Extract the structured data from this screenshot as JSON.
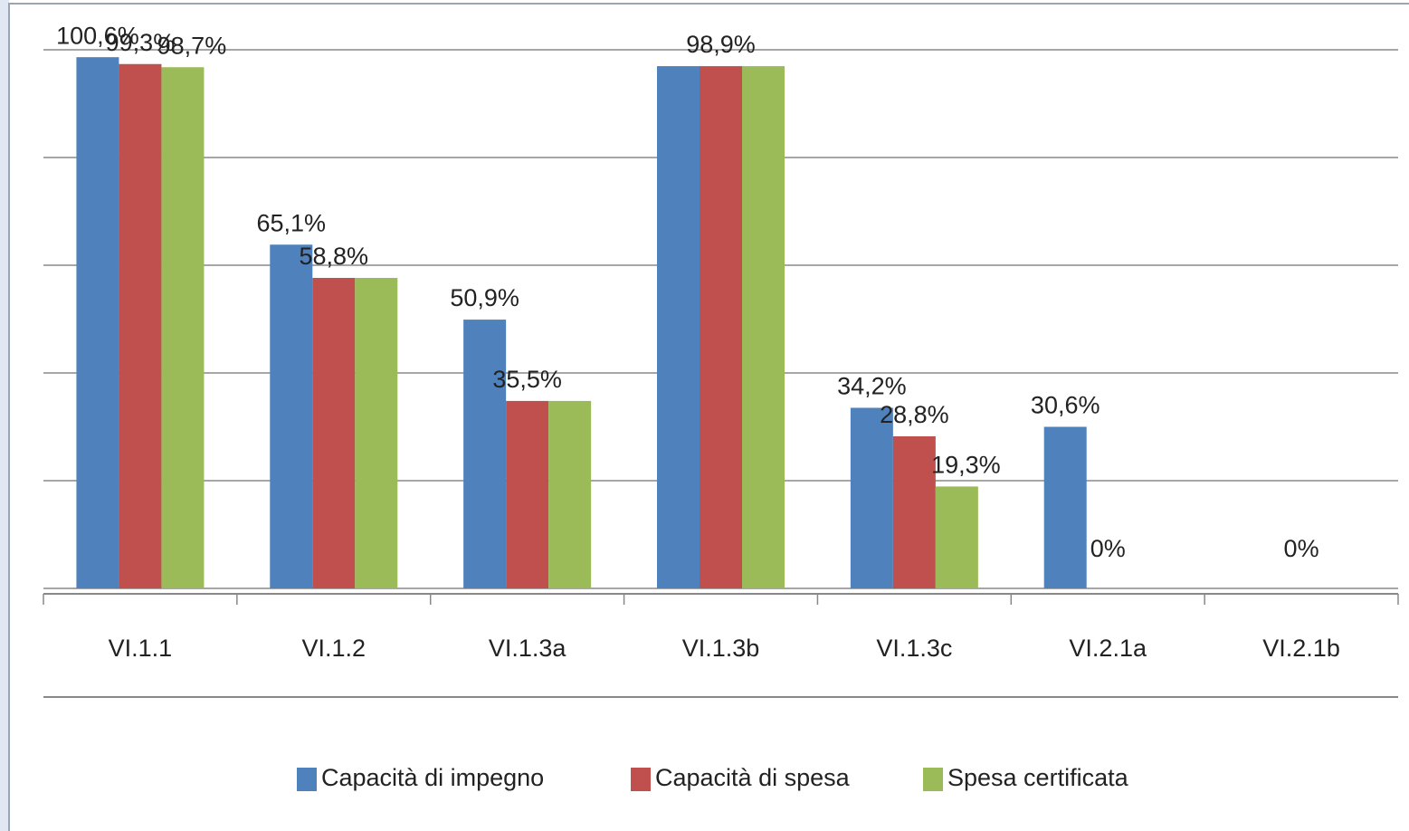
{
  "chart_data": {
    "type": "bar",
    "categories": [
      "VI.1.1",
      "VI.1.2",
      "VI.1.3a",
      "VI.1.3b",
      "VI.1.3c",
      "VI.2.1a",
      "VI.2.1b"
    ],
    "series": [
      {
        "name": "Capacità di impegno",
        "color": "#4f81bd",
        "values": [
          100.6,
          65.1,
          50.9,
          98.9,
          34.2,
          30.6,
          0
        ],
        "value_labels": [
          "100,6%",
          "65,1%",
          "50,9%",
          null,
          "34,2%",
          "30,6%",
          null
        ]
      },
      {
        "name": "Capacità di spesa",
        "color": "#c0504d",
        "values": [
          99.3,
          58.8,
          35.5,
          98.9,
          28.8,
          0,
          0
        ],
        "value_labels": [
          "99,3%",
          "58,8%",
          "35,5%",
          "98,9%",
          "28,8%",
          "0%",
          "0%"
        ]
      },
      {
        "name": "Spesa certificata",
        "color": "#9bbb59",
        "values": [
          98.7,
          58.8,
          35.5,
          98.9,
          19.3,
          0,
          0
        ],
        "value_labels": [
          "98,7%",
          null,
          null,
          null,
          "19,3%",
          null,
          null
        ]
      }
    ],
    "ylim": [
      0,
      102
    ],
    "yticks": [
      0,
      20.4,
      40.8,
      61.2,
      81.6,
      102
    ],
    "grid": true,
    "legend": "bottom"
  }
}
